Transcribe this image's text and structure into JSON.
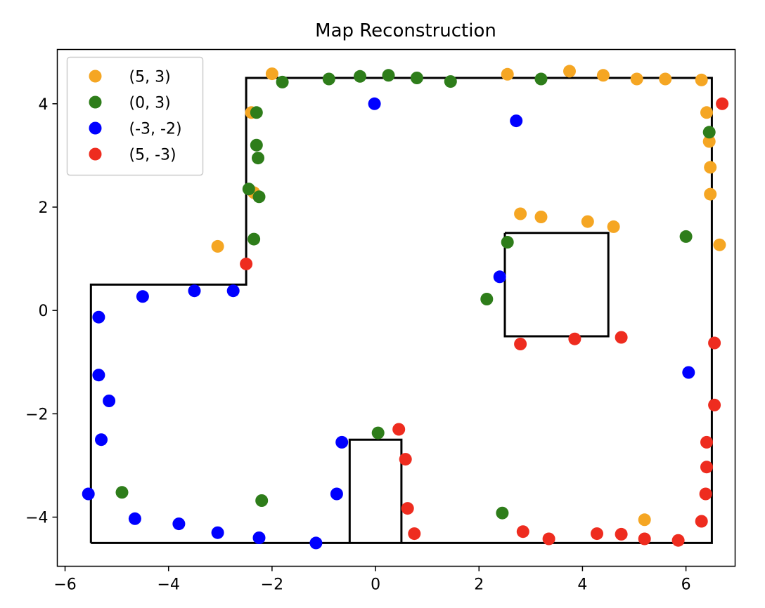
{
  "chart_data": {
    "type": "scatter",
    "title": "Map Reconstruction",
    "xlabel": "",
    "ylabel": "",
    "xlim": [
      -6.15,
      6.95
    ],
    "ylim": [
      -4.95,
      5.05
    ],
    "xticks": [
      -6,
      -4,
      -2,
      0,
      2,
      4,
      6
    ],
    "xtick_labels": [
      "−6",
      "−4",
      "−2",
      "0",
      "2",
      "4",
      "6"
    ],
    "yticks": [
      -4,
      -2,
      0,
      2,
      4
    ],
    "ytick_labels": [
      "−4",
      "−2",
      "0",
      "2",
      "4"
    ],
    "grid": false,
    "legend_position": "upper-left",
    "outlines": [
      {
        "name": "outer-wall",
        "x": [
          -5.5,
          -5.5,
          -2.5,
          -2.5,
          6.5,
          6.5,
          -5.5
        ],
        "y": [
          -4.5,
          0.5,
          0.5,
          4.5,
          4.5,
          -4.5,
          -4.5
        ]
      },
      {
        "name": "inner-box",
        "x": [
          2.5,
          4.5,
          4.5,
          2.5,
          2.5
        ],
        "y": [
          1.5,
          1.5,
          -0.5,
          -0.5,
          1.5
        ]
      },
      {
        "name": "bottom-block",
        "x": [
          -0.5,
          -0.5,
          0.5,
          0.5
        ],
        "y": [
          -4.5,
          -2.5,
          -2.5,
          -4.5
        ]
      }
    ],
    "series": [
      {
        "name": "(5, 3)",
        "color": "#f5a623",
        "points": [
          [
            -2.0,
            4.58
          ],
          [
            2.55,
            4.57
          ],
          [
            3.75,
            4.63
          ],
          [
            4.4,
            4.55
          ],
          [
            5.05,
            4.48
          ],
          [
            5.6,
            4.48
          ],
          [
            6.3,
            4.46
          ],
          [
            6.4,
            3.83
          ],
          [
            6.45,
            3.27
          ],
          [
            6.47,
            2.77
          ],
          [
            6.47,
            2.25
          ],
          [
            6.65,
            1.27
          ],
          [
            4.6,
            1.62
          ],
          [
            4.1,
            1.72
          ],
          [
            3.2,
            1.81
          ],
          [
            2.8,
            1.87
          ],
          [
            -3.05,
            1.24
          ],
          [
            -2.4,
            3.83
          ],
          [
            -2.35,
            2.28
          ],
          [
            5.2,
            -4.05
          ]
        ]
      },
      {
        "name": "(0, 3)",
        "color": "#2e7d1a",
        "points": [
          [
            -1.8,
            4.42
          ],
          [
            -0.9,
            4.48
          ],
          [
            -0.3,
            4.53
          ],
          [
            0.25,
            4.55
          ],
          [
            0.8,
            4.5
          ],
          [
            1.45,
            4.43
          ],
          [
            3.2,
            4.48
          ],
          [
            -2.3,
            3.83
          ],
          [
            -2.3,
            3.2
          ],
          [
            -2.27,
            2.95
          ],
          [
            -2.45,
            2.35
          ],
          [
            -2.25,
            2.2
          ],
          [
            -2.35,
            1.38
          ],
          [
            2.55,
            1.32
          ],
          [
            2.15,
            0.22
          ],
          [
            6.0,
            1.43
          ],
          [
            6.45,
            3.45
          ],
          [
            0.05,
            -2.37
          ],
          [
            -4.9,
            -3.52
          ],
          [
            -2.2,
            -3.68
          ],
          [
            2.45,
            -3.92
          ]
        ]
      },
      {
        "name": "(-3, -2)",
        "color": "#0000ff",
        "points": [
          [
            -0.02,
            4.0
          ],
          [
            2.72,
            3.67
          ],
          [
            2.4,
            0.65
          ],
          [
            -2.75,
            0.38
          ],
          [
            -3.5,
            0.38
          ],
          [
            -4.5,
            0.27
          ],
          [
            -5.35,
            -0.13
          ],
          [
            -5.35,
            -1.25
          ],
          [
            -5.15,
            -1.75
          ],
          [
            -5.3,
            -2.5
          ],
          [
            -5.55,
            -3.55
          ],
          [
            -4.65,
            -4.03
          ],
          [
            -3.8,
            -4.13
          ],
          [
            -3.05,
            -4.3
          ],
          [
            -2.25,
            -4.4
          ],
          [
            -1.15,
            -4.5
          ],
          [
            -0.75,
            -3.55
          ],
          [
            -0.65,
            -2.55
          ],
          [
            6.05,
            -1.2
          ]
        ]
      },
      {
        "name": "(5, -3)",
        "color": "#ee2c1f",
        "points": [
          [
            6.7,
            4.0
          ],
          [
            -2.5,
            0.9
          ],
          [
            2.8,
            -0.65
          ],
          [
            3.85,
            -0.55
          ],
          [
            4.75,
            -0.52
          ],
          [
            6.55,
            -0.63
          ],
          [
            6.55,
            -1.83
          ],
          [
            0.45,
            -2.3
          ],
          [
            0.58,
            -2.88
          ],
          [
            6.4,
            -2.55
          ],
          [
            6.4,
            -3.03
          ],
          [
            6.38,
            -3.55
          ],
          [
            0.62,
            -3.83
          ],
          [
            0.75,
            -4.32
          ],
          [
            2.85,
            -4.28
          ],
          [
            3.35,
            -4.42
          ],
          [
            4.28,
            -4.32
          ],
          [
            4.75,
            -4.33
          ],
          [
            5.2,
            -4.42
          ],
          [
            5.85,
            -4.45
          ],
          [
            6.3,
            -4.08
          ]
        ]
      }
    ]
  }
}
